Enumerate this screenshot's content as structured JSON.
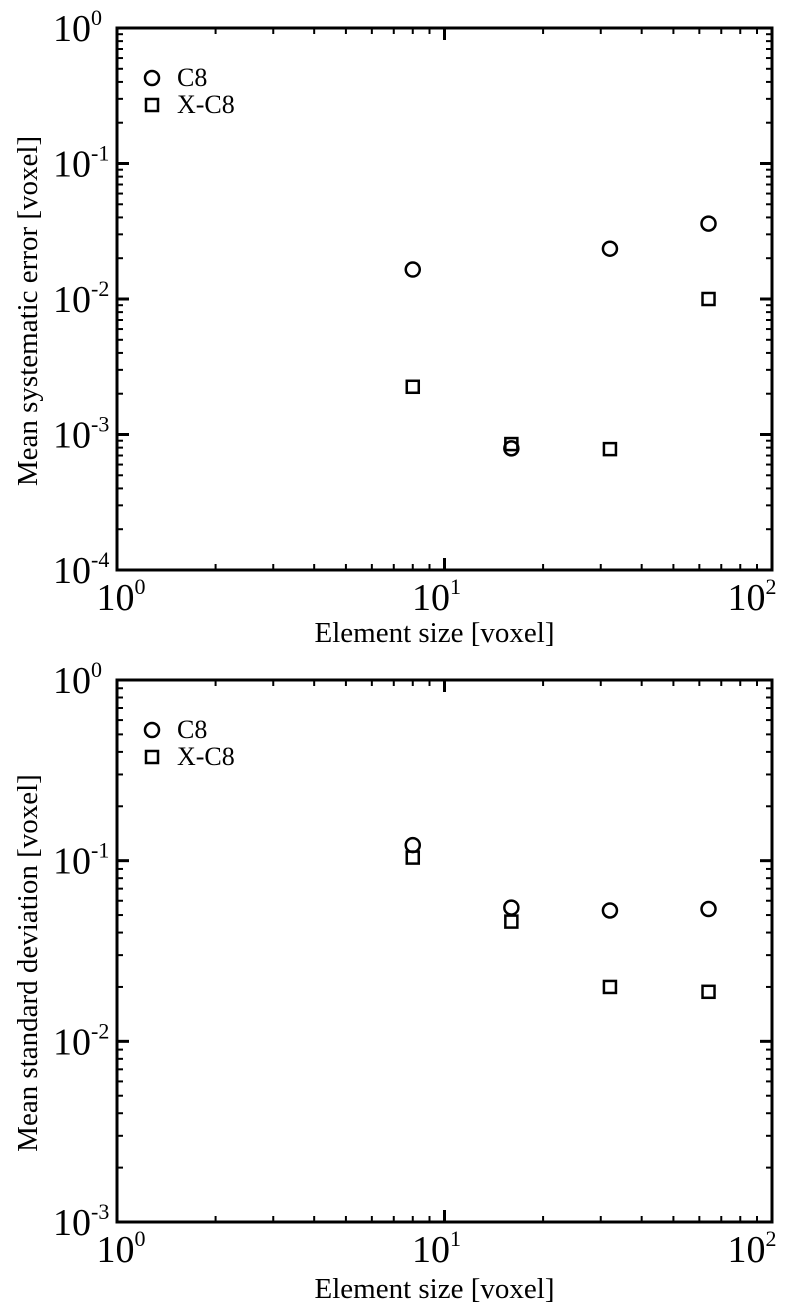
{
  "chart_data": [
    {
      "type": "scatter",
      "xlabel": "Element size [voxel]",
      "ylabel": "Mean systematic error  [voxel]",
      "xscale": "log",
      "yscale": "log",
      "xlim": [
        1,
        100
      ],
      "ylim": [
        0.0001,
        1
      ],
      "x_ticks": [
        {
          "base": "10",
          "exp": "0"
        },
        {
          "base": "10",
          "exp": "1"
        },
        {
          "base": "10",
          "exp": "2"
        }
      ],
      "y_ticks": [
        {
          "base": "10",
          "exp": "-4"
        },
        {
          "base": "10",
          "exp": "-3"
        },
        {
          "base": "10",
          "exp": "-2"
        },
        {
          "base": "10",
          "exp": "-1"
        },
        {
          "base": "10",
          "exp": "0"
        }
      ],
      "legend": {
        "position": "top-left"
      },
      "grid": false,
      "series": [
        {
          "name": "C8",
          "marker": "circle",
          "x": [
            8,
            16,
            32,
            64
          ],
          "y": [
            0.0165,
            0.00079,
            0.0235,
            0.036
          ]
        },
        {
          "name": "X-C8",
          "marker": "square",
          "x": [
            8,
            16,
            32,
            64
          ],
          "y": [
            0.00225,
            0.00085,
            0.00078,
            0.01
          ]
        }
      ]
    },
    {
      "type": "scatter",
      "xlabel": "Element size [voxel]",
      "ylabel": "Mean standard deviation [voxel]",
      "xscale": "log",
      "yscale": "log",
      "xlim": [
        1,
        100
      ],
      "ylim": [
        0.001,
        1
      ],
      "x_ticks": [
        {
          "base": "10",
          "exp": "0"
        },
        {
          "base": "10",
          "exp": "1"
        },
        {
          "base": "10",
          "exp": "2"
        }
      ],
      "y_ticks": [
        {
          "base": "10",
          "exp": "-3"
        },
        {
          "base": "10",
          "exp": "-2"
        },
        {
          "base": "10",
          "exp": "-1"
        },
        {
          "base": "10",
          "exp": "0"
        }
      ],
      "legend": {
        "position": "top-left"
      },
      "grid": false,
      "series": [
        {
          "name": "C8",
          "marker": "circle",
          "x": [
            8,
            16,
            32,
            64
          ],
          "y": [
            0.122,
            0.055,
            0.053,
            0.054
          ]
        },
        {
          "name": "X-C8",
          "marker": "square",
          "x": [
            8,
            16,
            32,
            64
          ],
          "y": [
            0.104,
            0.046,
            0.02,
            0.0188
          ]
        }
      ]
    }
  ]
}
